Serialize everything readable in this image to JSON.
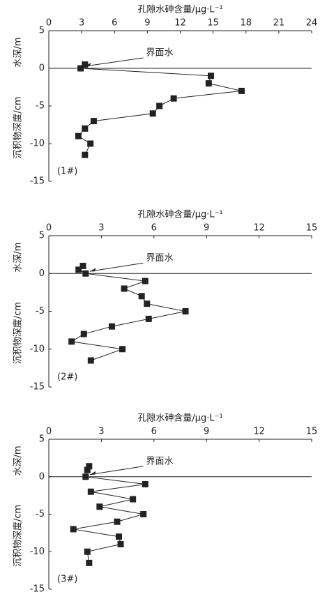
{
  "chart_data": [
    {
      "type": "line",
      "title": "孔隙水砷含量/μg·L⁻¹",
      "y_label_upper": "水深/m",
      "y_label_lower": "沉积物深度/cm",
      "annotation": "界面水",
      "panel_label": "(1#)",
      "xlim": [
        0,
        24
      ],
      "xticks": [
        0,
        3,
        6,
        9,
        12,
        15,
        18,
        21,
        24
      ],
      "ylim": [
        -15,
        5
      ],
      "yticks": [
        5,
        0,
        -5,
        -10,
        -15
      ],
      "color": "#222222",
      "series": [
        {
          "x": [
            3.3,
            2.9,
            14.8,
            14.6,
            17.6,
            11.4,
            10.1,
            9.5,
            4.1,
            3.3,
            2.7,
            3.8,
            3.3
          ],
          "y": [
            0.5,
            0,
            -1,
            -2,
            -3,
            -4,
            -5,
            -6,
            -7,
            -8,
            -9,
            -10,
            -11.5
          ]
        }
      ]
    },
    {
      "type": "line",
      "title": "孔隙水砷含量/μg·L⁻¹",
      "y_label_upper": "水深/m",
      "y_label_lower": "沉积物深度/cm",
      "annotation": "界面水",
      "panel_label": "(2#)",
      "xlim": [
        0,
        15
      ],
      "xticks": [
        0,
        3,
        6,
        9,
        12,
        15
      ],
      "ylim": [
        -15,
        5
      ],
      "yticks": [
        5,
        0,
        -5,
        -10,
        -15
      ],
      "color": "#222222",
      "series": [
        {
          "x": [
            1.95,
            1.7,
            2.1,
            5.5,
            4.3,
            5.3,
            5.6,
            7.8,
            5.7,
            3.6,
            2.0,
            1.3,
            4.2,
            2.4
          ],
          "y": [
            1,
            0.5,
            0,
            -1,
            -2,
            -3,
            -4,
            -5,
            -6,
            -7,
            -8,
            -9,
            -10,
            -11.5
          ]
        }
      ]
    },
    {
      "type": "line",
      "title": "孔隙水砷含量/μg·L⁻¹",
      "y_label_upper": "水深/m",
      "y_label_lower": "沉积物深度/cm",
      "annotation": "界面水",
      "panel_label": "(3#)",
      "xlim": [
        0,
        15
      ],
      "xticks": [
        0,
        3,
        6,
        9,
        12,
        15
      ],
      "ylim": [
        -15,
        5
      ],
      "yticks": [
        5,
        0,
        -5,
        -10,
        -15
      ],
      "color": "#222222",
      "series": [
        {
          "x": [
            2.3,
            2.2,
            2.1,
            5.5,
            2.4,
            4.8,
            2.9,
            5.4,
            3.9,
            1.4,
            4.0,
            4.1,
            2.2,
            2.3
          ],
          "y": [
            1.4,
            0.9,
            0,
            -1,
            -2,
            -3,
            -4,
            -5,
            -6,
            -7,
            -8,
            -9,
            -10,
            -11.5
          ]
        }
      ]
    }
  ]
}
